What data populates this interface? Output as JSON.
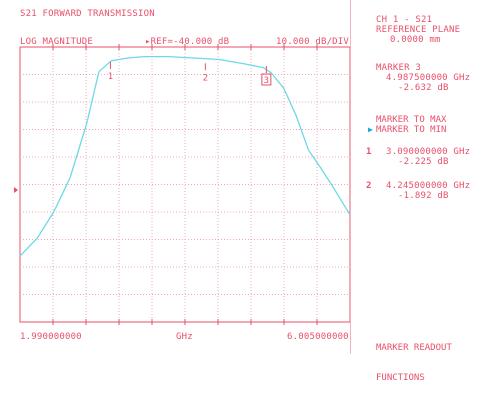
{
  "header": {
    "title": "S21 FORWARD TRANSMISSION",
    "format": "LOG MAGNITUDE",
    "reference": "▸REF=-40.000 dB",
    "scale": "10.000 dB/DIV"
  },
  "x_axis": {
    "start_label": "1.990000000",
    "unit_label": "GHz",
    "stop_label": "6.005000000"
  },
  "sidebar": {
    "channel": "CH 1 - S21",
    "reference_plane_label": "REFERENCE PLANE",
    "reference_plane_value": "0.0000 mm",
    "active_marker_title": "MARKER 3",
    "active_marker_freq": "4.987500000 GHz",
    "active_marker_value": "-2.632 dB",
    "menu": [
      {
        "label": "MARKER TO MAX",
        "selected": false
      },
      {
        "label": "MARKER TO MIN",
        "selected": true
      }
    ],
    "markers": [
      {
        "number": "1",
        "freq": "3.090000000 GHz",
        "value": "-2.225 dB"
      },
      {
        "number": "2",
        "freq": "4.245000000 GHz",
        "value": "-1.892 dB"
      }
    ],
    "footer_line1": "MARKER READOUT",
    "footer_line2": "FUNCTIONS"
  },
  "colors": {
    "text": "#e8506a",
    "grid": "#f0a8b8",
    "trace": "#6ed8e8",
    "arrow": "#19a8d8"
  },
  "chart_data": {
    "type": "line",
    "title": "S21 FORWARD TRANSMISSION",
    "xlabel": "GHz",
    "ylabel": "",
    "xlim": [
      1.99,
      6.005
    ],
    "ylim": [
      -60,
      -40
    ],
    "grid": true,
    "series": [
      {
        "x": [
          1.99,
          2.2,
          2.4,
          2.6,
          2.8,
          2.95,
          3.1,
          3.3,
          3.5,
          3.8,
          4.1,
          4.4,
          4.7,
          4.95,
          5.05,
          5.2,
          5.35,
          5.5,
          5.65,
          5.8,
          6.005
        ],
        "values": [
          -55.2,
          -53.9,
          -52.0,
          -49.5,
          -45.6,
          -41.8,
          -41.0,
          -40.8,
          -40.7,
          -40.7,
          -40.8,
          -40.9,
          -41.2,
          -41.5,
          -41.9,
          -43.0,
          -45.0,
          -47.5,
          -48.8,
          -50.2,
          -52.2
        ]
      }
    ],
    "markers": [
      {
        "label": "1",
        "x": 3.09,
        "y": -41.3
      },
      {
        "label": "2",
        "x": 4.245,
        "y": -41.4
      },
      {
        "label": "3",
        "x": 4.9875,
        "y": -41.6
      }
    ]
  }
}
